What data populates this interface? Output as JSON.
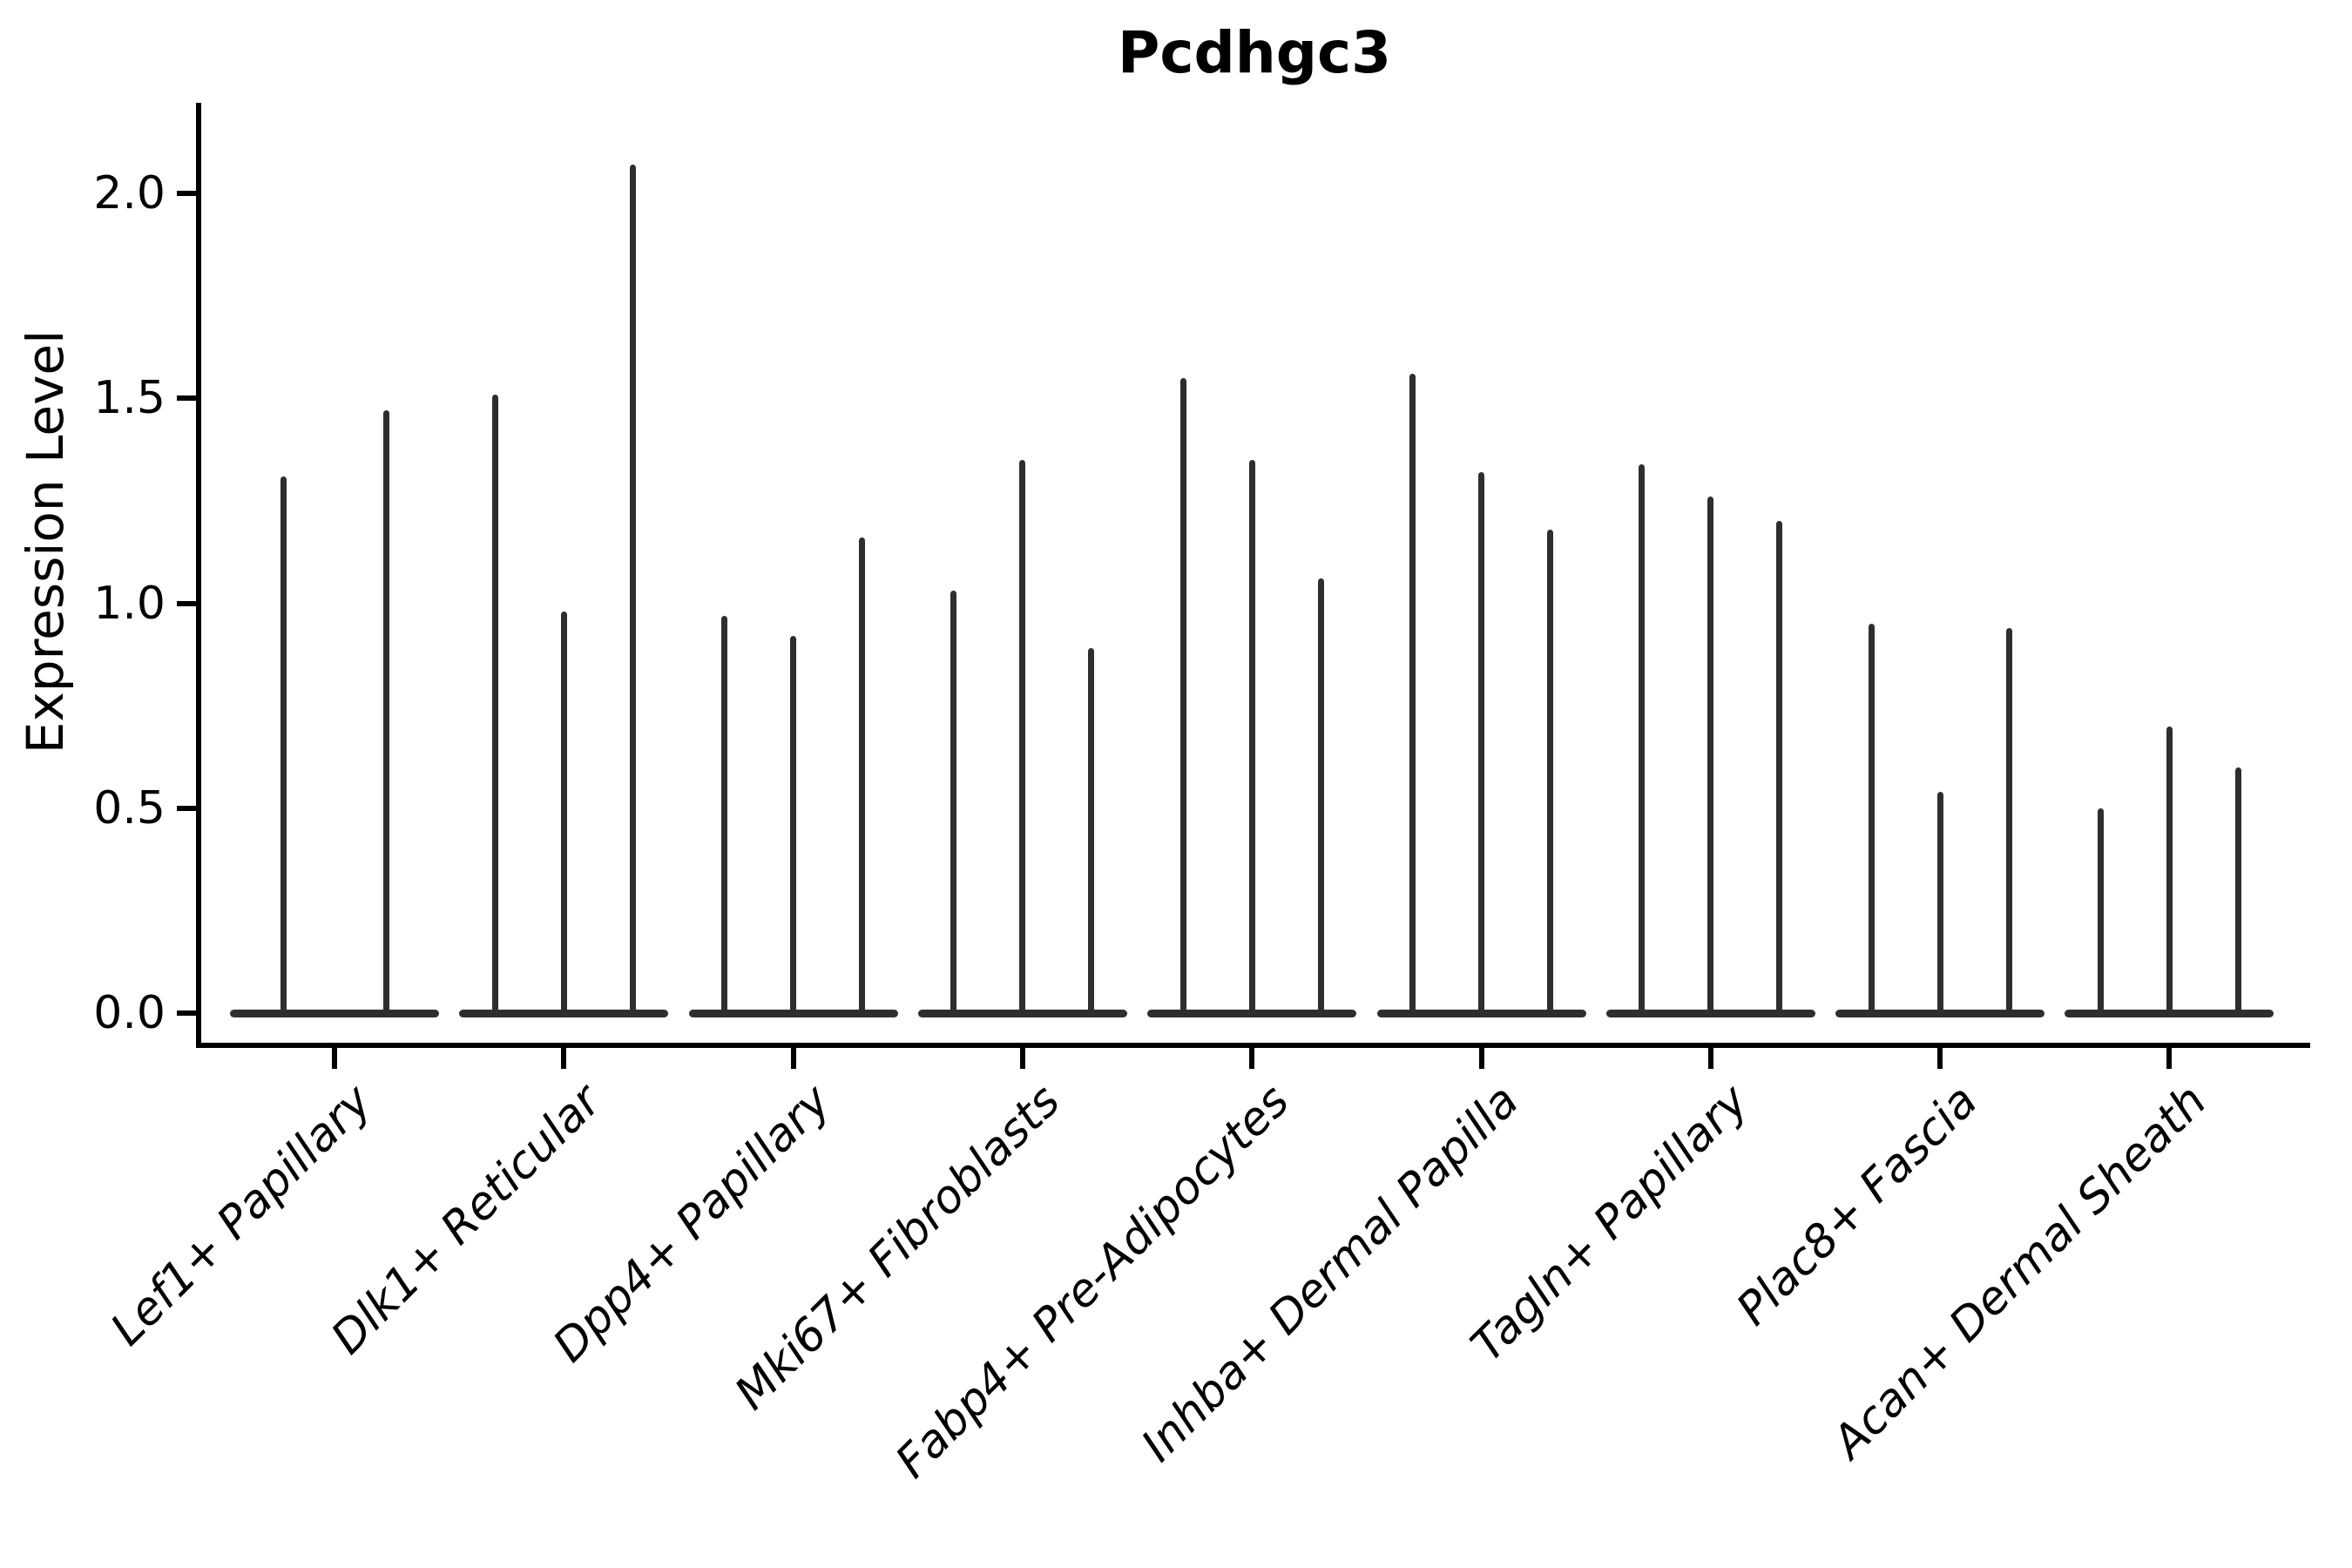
{
  "title": "Pcdhgc3",
  "ylabel": "Expression Level",
  "colors": {
    "text": "#000000",
    "spine": "#000000",
    "violin": "#2e2e2e",
    "background": "#ffffff"
  },
  "chart_data": {
    "type": "violin",
    "title": "Pcdhgc3",
    "xlabel": "",
    "ylabel": "Expression Level",
    "ylim": [
      0.0,
      2.2
    ],
    "yticks": [
      0.0,
      0.5,
      1.0,
      1.5,
      2.0
    ],
    "ytick_labels": [
      "0.0",
      "0.5",
      "1.0",
      "1.5",
      "2.0"
    ],
    "grid": "off",
    "legend": "none",
    "x_tick_label_style": "italic, rotated 45deg, right-anchored",
    "violin_style": "each violin is collapsed to a thin vertical spike reaching its maximum expression value, sitting on a flat wide base at 0",
    "categories": [
      "Lef1+ Papillary",
      "Dlk1+ Reticular",
      "Dpp4+ Papillary",
      "Mki67+ Fibroblasts",
      "Fabp4+ Pre-Adipocytes",
      "Inhba+ Dermal Papilla",
      "Tagln+ Papillary",
      "Plac8+ Fascia",
      "Acan+ Dermal Sheath"
    ],
    "groups": [
      {
        "category": "Lef1+ Papillary",
        "spike_maxima": [
          1.31,
          1.47
        ]
      },
      {
        "category": "Dlk1+ Reticular",
        "spike_maxima": [
          1.51,
          0.98,
          2.07
        ]
      },
      {
        "category": "Dpp4+ Papillary",
        "spike_maxima": [
          0.97,
          0.92,
          1.16
        ]
      },
      {
        "category": "Mki67+ Fibroblasts",
        "spike_maxima": [
          1.03,
          1.35,
          0.89
        ]
      },
      {
        "category": "Fabp4+ Pre-Adipocytes",
        "spike_maxima": [
          1.55,
          1.35,
          1.06
        ]
      },
      {
        "category": "Inhba+ Dermal Papilla",
        "spike_maxima": [
          1.56,
          1.32,
          1.18
        ]
      },
      {
        "category": "Tagln+ Papillary",
        "spike_maxima": [
          1.34,
          1.26,
          1.2
        ]
      },
      {
        "category": "Plac8+ Fascia",
        "spike_maxima": [
          0.95,
          0.54,
          0.94
        ]
      },
      {
        "category": "Acan+ Dermal Sheath",
        "spike_maxima": [
          0.5,
          0.7,
          0.6
        ]
      }
    ]
  }
}
